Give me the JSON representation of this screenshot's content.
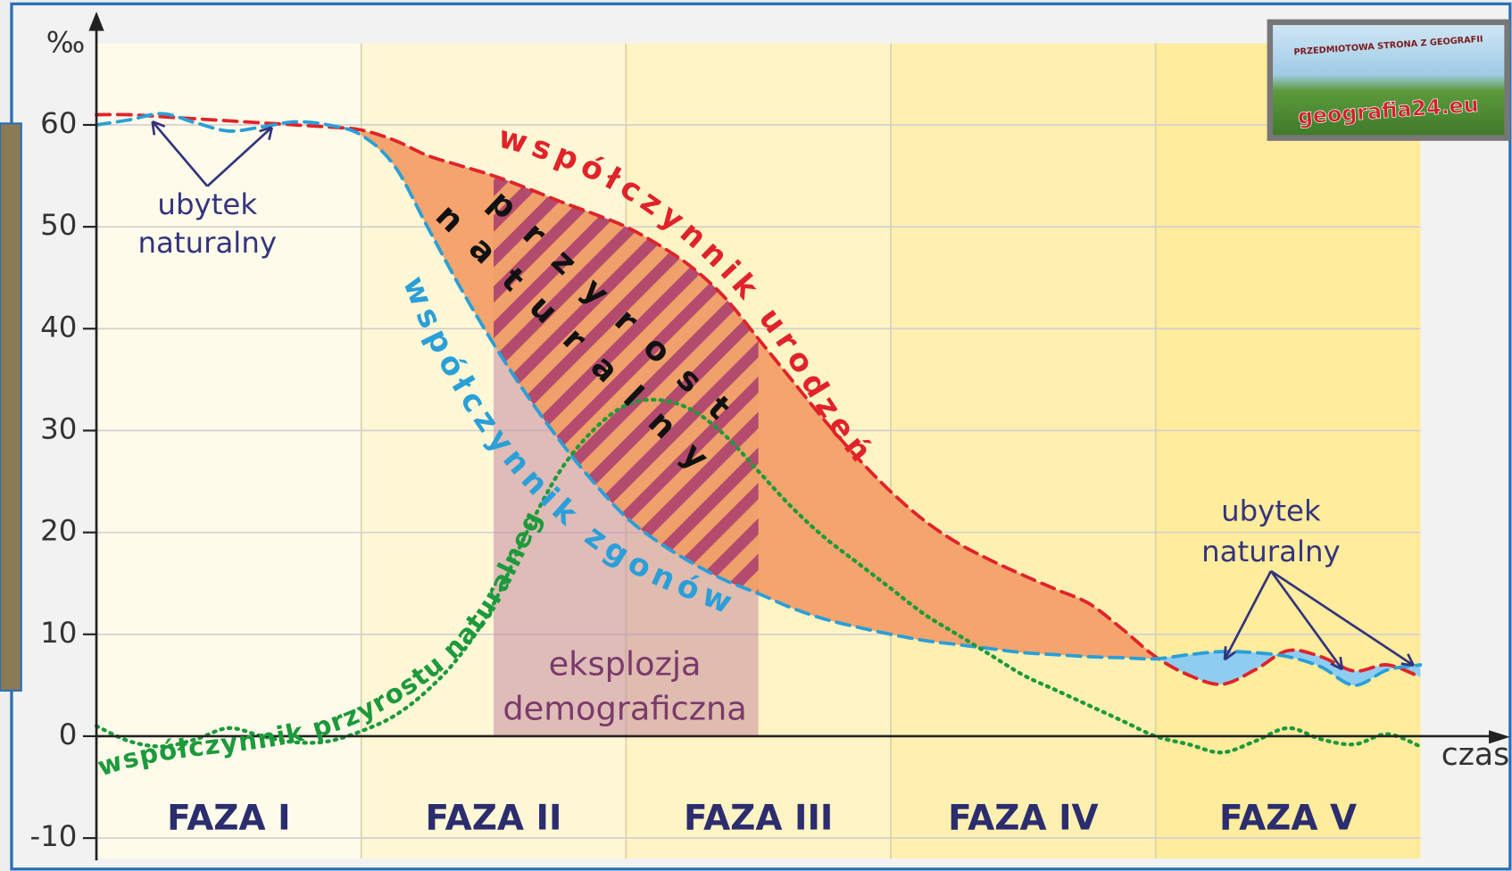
{
  "chart_data": {
    "type": "line",
    "y_label": "‰",
    "x_label": "czas",
    "phases": [
      "FAZA I",
      "FAZA II",
      "FAZA III",
      "FAZA IV",
      "FAZA V"
    ],
    "x": [
      0,
      0.125,
      0.25,
      0.375,
      0.5,
      0.625,
      0.75,
      0.875,
      1,
      1.125,
      1.25,
      1.375,
      1.5,
      1.625,
      1.75,
      1.875,
      2,
      2.125,
      2.25,
      2.375,
      2.5,
      2.625,
      2.75,
      2.875,
      3,
      3.125,
      3.25,
      3.375,
      3.5,
      3.625,
      3.75,
      3.875,
      4,
      4.125,
      4.25,
      4.375,
      4.5,
      4.625,
      4.75,
      4.875,
      5
    ],
    "xlim": [
      0,
      5
    ],
    "ylim": [
      -12,
      68
    ],
    "yticks": [
      -10,
      0,
      10,
      20,
      30,
      40,
      50,
      60
    ],
    "grid": true,
    "series": [
      {
        "name": "współczynnik urodzeń",
        "color": "#e0232a",
        "values": [
          61,
          61,
          60.8,
          60.6,
          60.4,
          60.2,
          60,
          59.8,
          59.5,
          58.5,
          57,
          56,
          55,
          53.8,
          52.5,
          51.3,
          50,
          48.2,
          46,
          43,
          39,
          35,
          31,
          27.3,
          24,
          21.2,
          19,
          17.3,
          15.8,
          14.4,
          13,
          10.5,
          7.8,
          6,
          5.1,
          6.5,
          8.4,
          7.8,
          6.4,
          7,
          5.8
        ]
      },
      {
        "name": "współczynnik zgonów",
        "color": "#2a9fd8",
        "values": [
          60,
          60.5,
          61.1,
          60.2,
          59.4,
          59.8,
          60.3,
          60,
          59,
          56,
          50,
          44,
          38.5,
          33.5,
          29,
          25,
          21.5,
          19,
          17,
          15.3,
          14,
          12.6,
          11.5,
          10.7,
          10,
          9.4,
          9,
          8.6,
          8.2,
          8,
          7.8,
          7.7,
          7.6,
          8,
          8.3,
          8.2,
          7.8,
          6.8,
          5,
          6.5,
          7
        ]
      },
      {
        "name": "współczynnik przyrostu naturalnego",
        "color": "#1c9a3c",
        "values": [
          1,
          -0.5,
          -1,
          -0.3,
          0.8,
          0,
          -0.6,
          -0.5,
          0.5,
          2,
          4.5,
          8,
          13,
          20,
          26,
          30,
          32.5,
          33,
          32,
          29.5,
          26,
          22.5,
          19.5,
          17,
          14.5,
          12,
          10,
          8,
          6,
          4.5,
          3,
          1.5,
          0,
          -0.8,
          -1.6,
          -0.5,
          0.8,
          -0.3,
          -0.8,
          0.2,
          -1
        ]
      }
    ],
    "annotations": {
      "natural_decrease_left": [
        "ubytek",
        "naturalny"
      ],
      "natural_decrease_right": [
        "ubytek",
        "naturalny"
      ],
      "population_explosion": [
        "eksplozja",
        "demograficzna"
      ],
      "natural_increase": [
        "przyrost",
        "naturalny"
      ]
    }
  },
  "logo": {
    "caption": "PRZEDMIOTOWA STRONA Z GEOGRAFII",
    "site": "geografia24.eu"
  }
}
